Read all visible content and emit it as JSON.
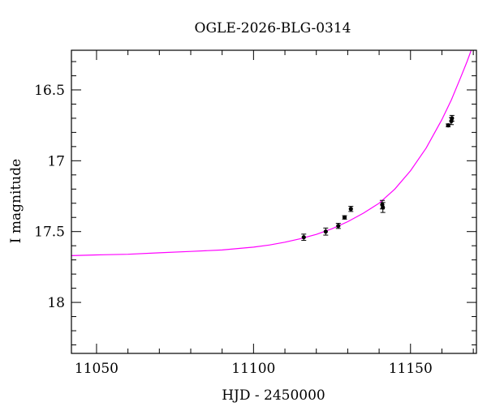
{
  "chart_data": {
    "type": "scatter",
    "title": "OGLE-2026-BLG-0314",
    "xlabel": "HJD - 2450000",
    "ylabel": "I magnitude",
    "xlim": [
      11042,
      11171
    ],
    "ylim": [
      18.36,
      16.22
    ],
    "y_inverted": true,
    "grid": false,
    "x_ticks": [
      {
        "value": 11050,
        "label": "11050"
      },
      {
        "value": 11100,
        "label": "11100"
      },
      {
        "value": 11150,
        "label": "11150"
      }
    ],
    "y_ticks": [
      {
        "value": 16.5,
        "label": "16.5"
      },
      {
        "value": 17.0,
        "label": "17"
      },
      {
        "value": 17.5,
        "label": "17.5"
      },
      {
        "value": 18.0,
        "label": "18"
      }
    ],
    "x_minor_step": 10,
    "y_minor_step": 0.1,
    "colors": {
      "model": "#ff00ff",
      "points": "#000000",
      "axes": "#000000"
    },
    "model_curve": {
      "x": [
        11042,
        11050,
        11060,
        11070,
        11080,
        11090,
        11100,
        11105,
        11110,
        11115,
        11120,
        11125,
        11130,
        11135,
        11140,
        11145,
        11150,
        11155,
        11160,
        11163,
        11166,
        11168,
        11170,
        11171
      ],
      "y": [
        17.67,
        17.665,
        17.66,
        17.65,
        17.64,
        17.63,
        17.61,
        17.595,
        17.575,
        17.55,
        17.52,
        17.48,
        17.43,
        17.37,
        17.3,
        17.2,
        17.07,
        16.91,
        16.71,
        16.57,
        16.41,
        16.3,
        16.18,
        16.12
      ]
    },
    "points": [
      {
        "x": 11116.0,
        "y": 17.54,
        "err": 0.022
      },
      {
        "x": 11123.0,
        "y": 17.5,
        "err": 0.025
      },
      {
        "x": 11127.0,
        "y": 17.46,
        "err": 0.018
      },
      {
        "x": 11129.0,
        "y": 17.4,
        "err": 0.012
      },
      {
        "x": 11131.0,
        "y": 17.34,
        "err": 0.018
      },
      {
        "x": 11141.0,
        "y": 17.31,
        "err": 0.03
      },
      {
        "x": 11141.2,
        "y": 17.33,
        "err": 0.035
      },
      {
        "x": 11162.0,
        "y": 16.75,
        "err": 0.01
      },
      {
        "x": 11163.0,
        "y": 16.72,
        "err": 0.025
      },
      {
        "x": 11163.2,
        "y": 16.7,
        "err": 0.02
      }
    ]
  }
}
